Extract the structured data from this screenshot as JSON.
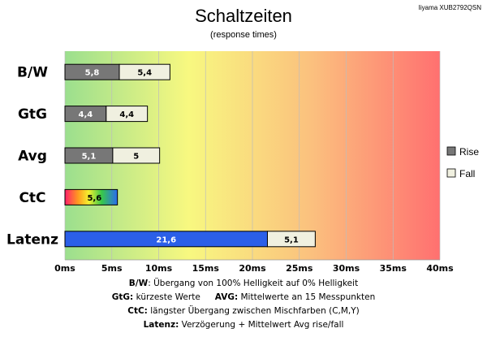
{
  "chart_data": {
    "type": "bar",
    "orientation": "horizontal",
    "stacked": true,
    "title": "Schaltzeiten",
    "subtitle": "(response times)",
    "model": "Iiyama XUB2792QSN",
    "categories": [
      "B/W",
      "GtG",
      "Avg",
      "CtC",
      "Latenz"
    ],
    "series": [
      {
        "name": "Rise",
        "values": [
          5.8,
          4.4,
          5.1,
          null,
          21.6
        ],
        "color": "#777777",
        "labels": [
          "5,8",
          "4,4",
          "5,1",
          null,
          "21,6"
        ]
      },
      {
        "name": "Fall",
        "values": [
          5.4,
          4.4,
          5,
          null,
          5.1
        ],
        "color": "#f0f0e0",
        "labels": [
          "5,4",
          "4,4",
          "5",
          null,
          "5,1"
        ]
      }
    ],
    "single_values": [
      {
        "category": "CtC",
        "value": 5.6,
        "label": "5,6",
        "fill": "rainbow"
      }
    ],
    "latency_rise_color": "#2b5fe8",
    "xlim": [
      0,
      40
    ],
    "xticks": [
      "0ms",
      "5ms",
      "10ms",
      "15ms",
      "20ms",
      "25ms",
      "30ms",
      "35ms",
      "40ms"
    ],
    "grid": true,
    "legend": "right",
    "background_gradient": [
      "#9bdf8e",
      "#f8f880",
      "#fbc07e",
      "#ff7070"
    ]
  },
  "notes": [
    {
      "bold": "B/W",
      "text": ":  Übergang von 100% Helligkeit auf 0% Helligkeit"
    },
    {
      "bold": "GtG:",
      "text": " kürzeste  Werte",
      "bold2": "AVG:",
      "text2": " Mittelwerte  an 15 Messpunkten"
    },
    {
      "bold": "CtC:",
      "text": " längster Übergang  zwischen Mischfarben  (C,M,Y)"
    },
    {
      "bold": "Latenz:",
      "text": " Verzögerung  + Mittelwert  Avg rise/fall"
    }
  ]
}
